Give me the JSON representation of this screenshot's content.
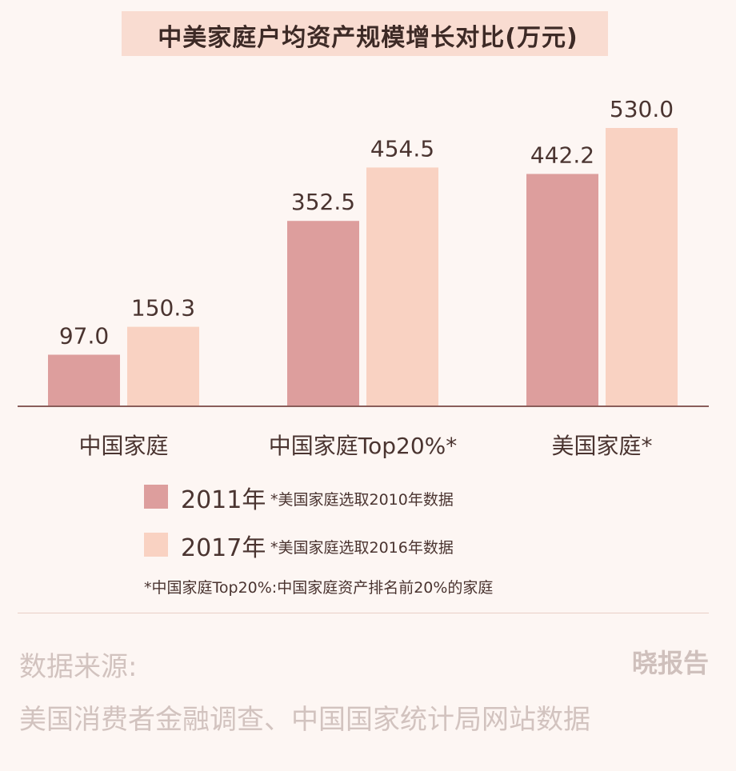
{
  "colors": {
    "series_2011": "#dd9e9d",
    "series_2017": "#f9d2c2",
    "axis": "#8a5d5a",
    "text": "#4a3430",
    "title_band": "#f9dcd1"
  },
  "chart_data": {
    "type": "bar",
    "title": "中美家庭户均资产规模增长对比(万元)",
    "categories": [
      "中国家庭",
      "中国家庭Top20%*",
      "美国家庭*"
    ],
    "series": [
      {
        "name": "2011年",
        "values": [
          97.0,
          352.5,
          442.2
        ]
      },
      {
        "name": "2017年",
        "values": [
          150.3,
          454.5,
          530.0
        ]
      }
    ],
    "value_labels": [
      [
        "97.0",
        "352.5",
        "442.2"
      ],
      [
        "150.3",
        "454.5",
        "530.0"
      ]
    ],
    "ylim": [
      0,
      560
    ],
    "grid": false,
    "legend_position": "bottom"
  },
  "legend": [
    {
      "year": "2011年",
      "note": "*美国家庭选取2010年数据"
    },
    {
      "year": "2017年",
      "note": "*美国家庭选取2016年数据"
    }
  ],
  "footnote": "*中国家庭Top20%:中国家庭资产排名前20%的家庭",
  "source": {
    "label": "数据来源:",
    "text": "美国消费者金融调查、中国国家统计局网站数据"
  },
  "brand": "晓报告"
}
